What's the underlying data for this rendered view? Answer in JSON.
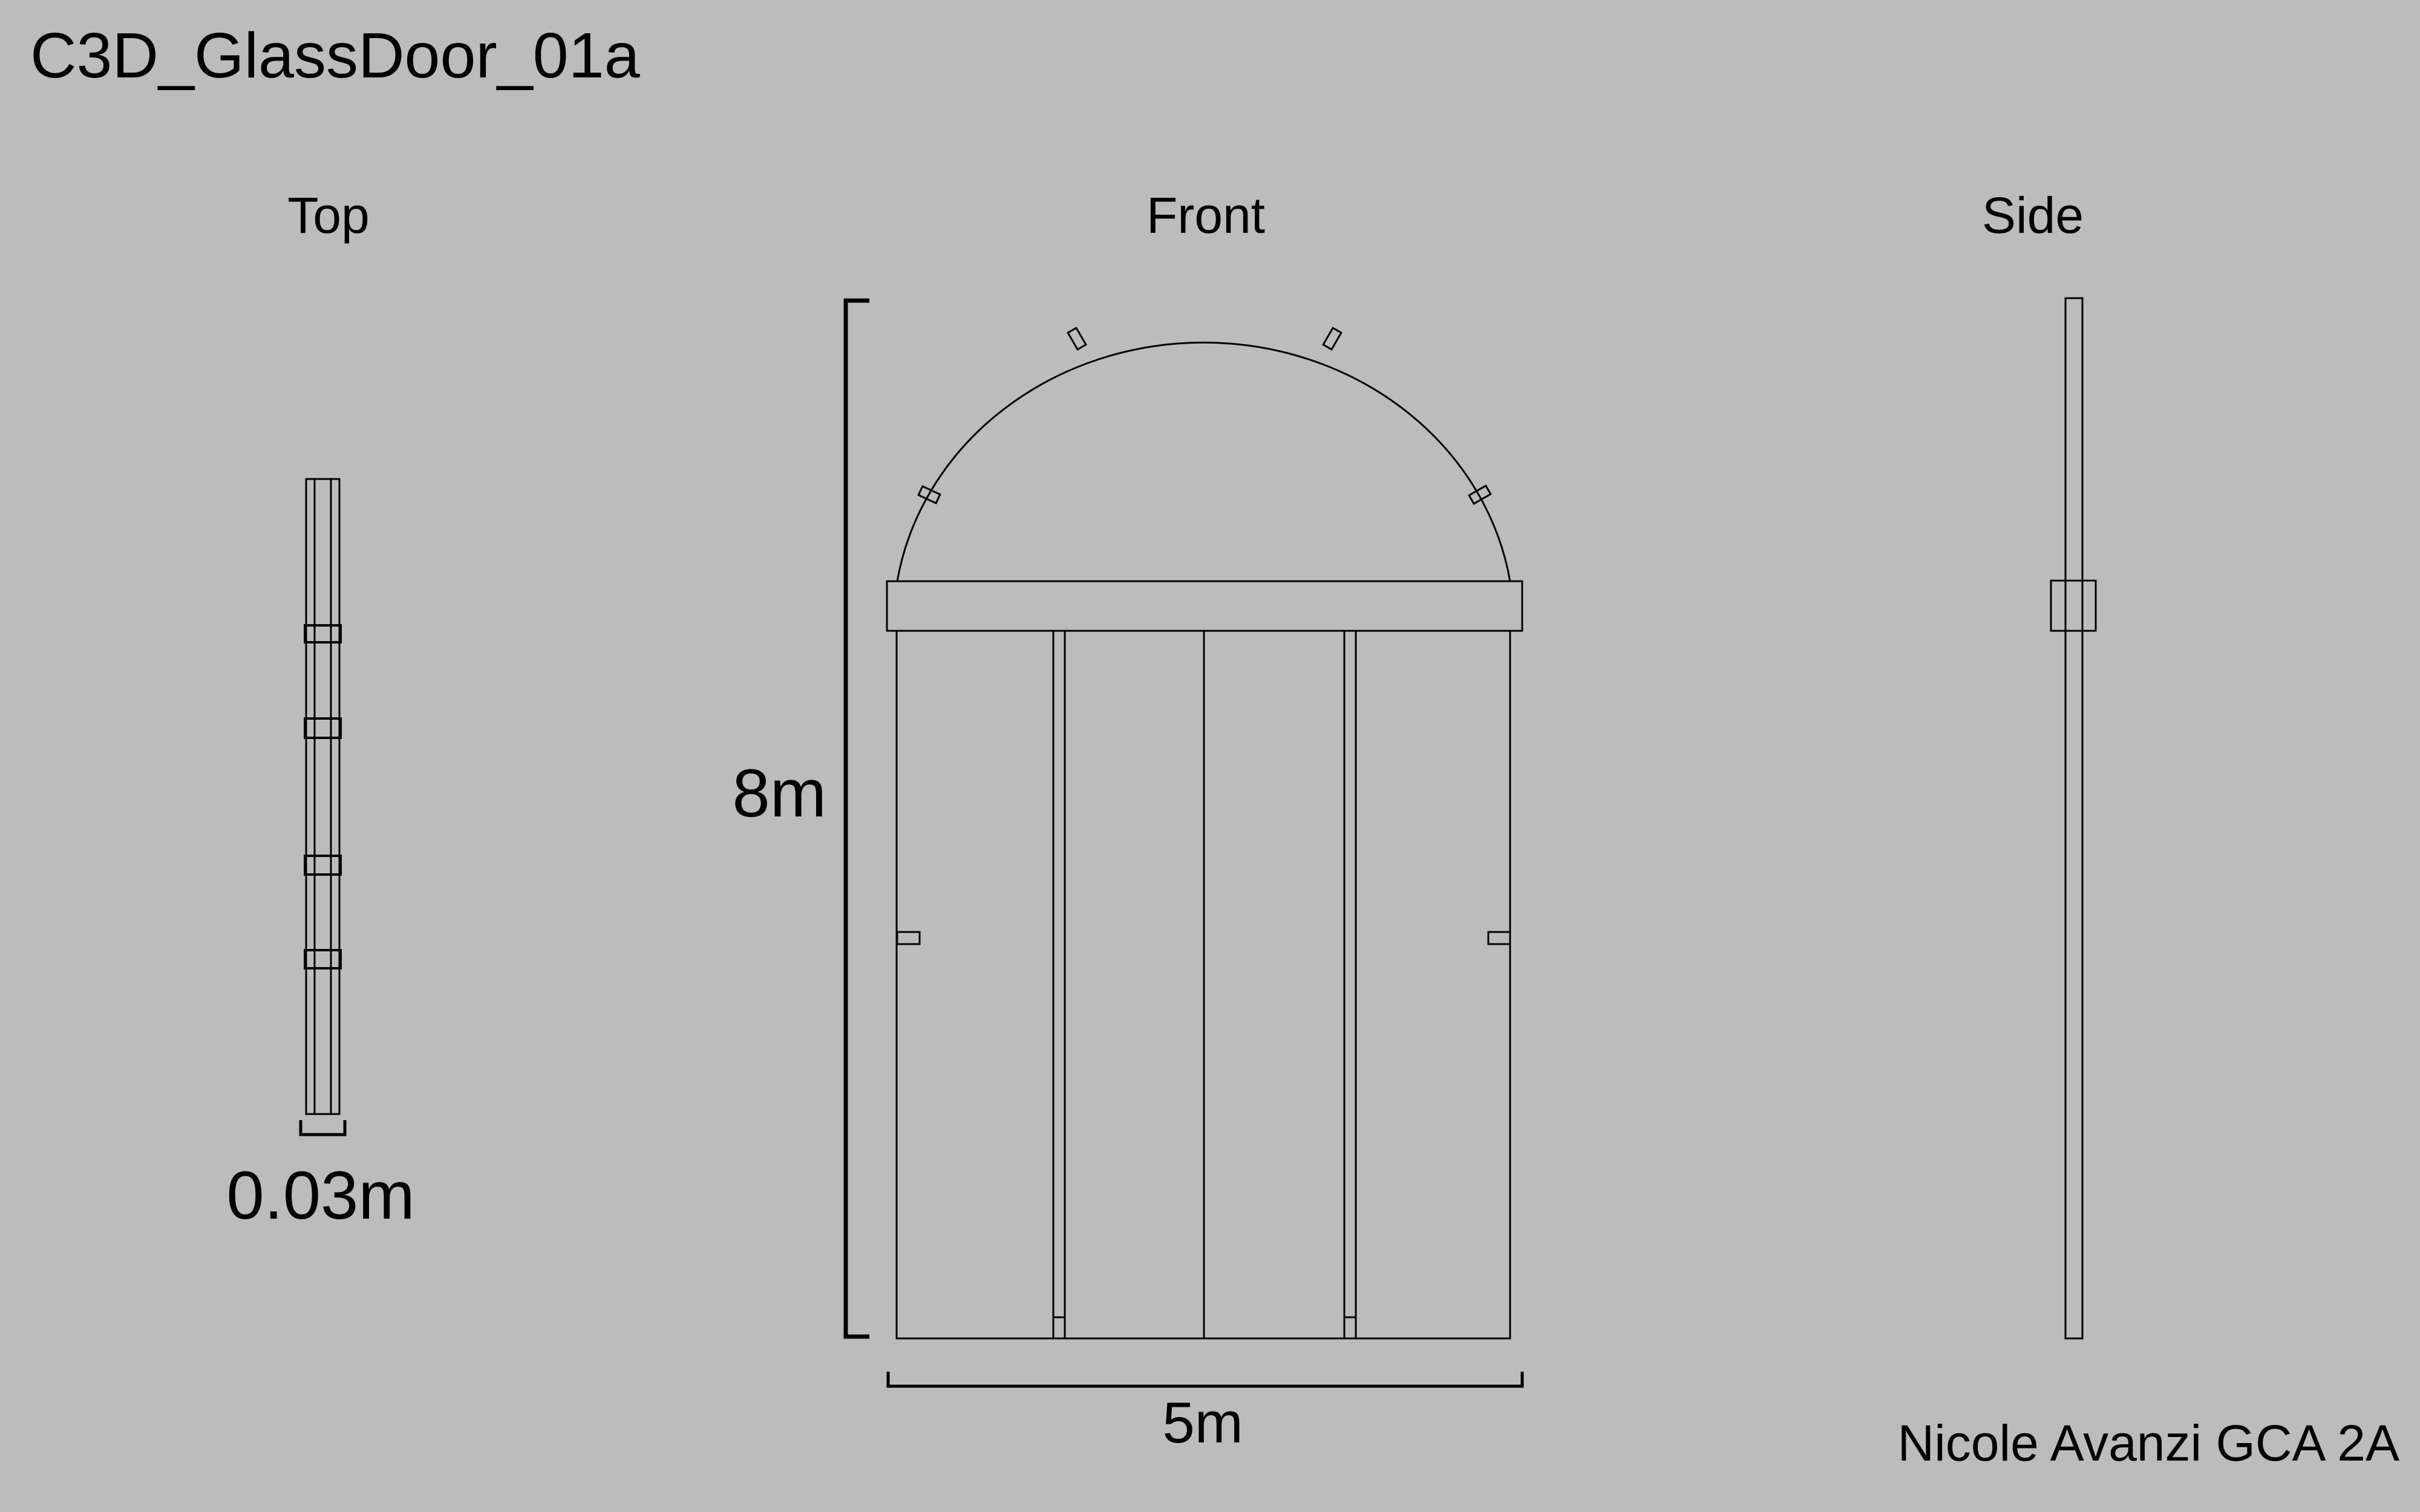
{
  "title": "C3D_GlassDoor_01a",
  "views": {
    "top": "Top",
    "front": "Front",
    "side": "Side"
  },
  "dimensions": {
    "height": "8m",
    "width": "5m",
    "depth": "0.03m"
  },
  "credit": "Nicole Avanzi GCA 2A",
  "colors": {
    "background": "#BCBCBC",
    "line": "#000000"
  }
}
